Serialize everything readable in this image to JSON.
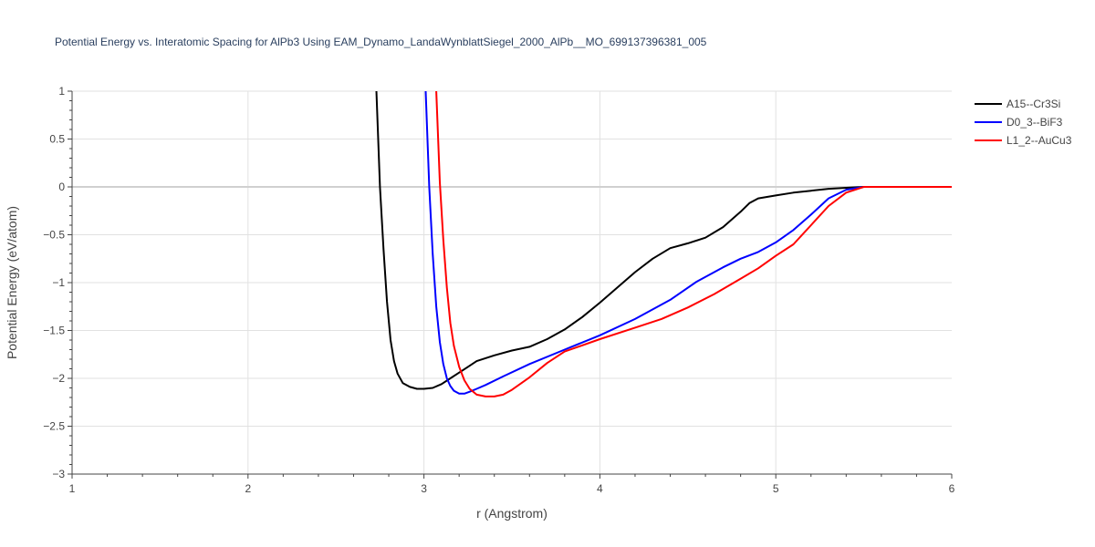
{
  "chart_data": {
    "type": "line",
    "title": "Potential Energy vs. Interatomic Spacing for AlPb3 Using EAM_Dynamo_LandaWynblattSiegel_2000_AlPb__MO_699137396381_005",
    "xlabel": "r (Angstrom)",
    "ylabel": "Potential Energy (eV/atom)",
    "xlim": [
      1,
      6
    ],
    "ylim": [
      -3,
      1
    ],
    "xticks": [
      1,
      2,
      3,
      4,
      5,
      6
    ],
    "xtick_labels": [
      "1",
      "2",
      "3",
      "4",
      "5",
      "6"
    ],
    "yticks": [
      1,
      0.5,
      0,
      -0.5,
      -1,
      -1.5,
      -2,
      -2.5,
      -3
    ],
    "ytick_labels": [
      "1",
      "0.5",
      "0",
      "−0.5",
      "−1",
      "−1.5",
      "−2",
      "−2.5",
      "−3"
    ],
    "grid": true,
    "legend_position": "top-right",
    "series": [
      {
        "name": "A15--Cr3Si",
        "color": "#000000",
        "x": [
          2.73,
          2.75,
          2.77,
          2.79,
          2.81,
          2.83,
          2.85,
          2.88,
          2.92,
          2.96,
          3.0,
          3.05,
          3.1,
          3.15,
          3.2,
          3.25,
          3.3,
          3.4,
          3.5,
          3.6,
          3.7,
          3.8,
          3.9,
          4.0,
          4.1,
          4.2,
          4.3,
          4.4,
          4.5,
          4.6,
          4.7,
          4.8,
          4.85,
          4.9,
          5.0,
          5.1,
          5.2,
          5.3,
          5.4,
          5.5,
          5.6,
          5.8,
          6.0
        ],
        "y": [
          1.0,
          0.0,
          -0.65,
          -1.2,
          -1.6,
          -1.82,
          -1.95,
          -2.05,
          -2.09,
          -2.11,
          -2.11,
          -2.1,
          -2.06,
          -2.0,
          -1.94,
          -1.88,
          -1.82,
          -1.76,
          -1.71,
          -1.67,
          -1.59,
          -1.49,
          -1.36,
          -1.21,
          -1.05,
          -0.89,
          -0.75,
          -0.64,
          -0.59,
          -0.53,
          -0.42,
          -0.26,
          -0.17,
          -0.12,
          -0.09,
          -0.06,
          -0.04,
          -0.02,
          -0.01,
          0.0,
          0.0,
          0.0,
          0.0
        ]
      },
      {
        "name": "D0_3--BiF3",
        "color": "#0000ff",
        "x": [
          3.01,
          3.03,
          3.05,
          3.07,
          3.09,
          3.11,
          3.13,
          3.15,
          3.17,
          3.2,
          3.23,
          3.26,
          3.3,
          3.35,
          3.45,
          3.6,
          3.8,
          4.0,
          4.2,
          4.4,
          4.55,
          4.7,
          4.8,
          4.9,
          5.0,
          5.1,
          5.2,
          5.3,
          5.4,
          5.5,
          5.6,
          5.8,
          6.0
        ],
        "y": [
          1.0,
          0.0,
          -0.7,
          -1.25,
          -1.62,
          -1.85,
          -2.0,
          -2.08,
          -2.13,
          -2.16,
          -2.16,
          -2.14,
          -2.11,
          -2.07,
          -1.98,
          -1.85,
          -1.7,
          -1.55,
          -1.38,
          -1.18,
          -0.99,
          -0.84,
          -0.75,
          -0.68,
          -0.58,
          -0.45,
          -0.29,
          -0.12,
          -0.03,
          0.0,
          0.0,
          0.0,
          0.0
        ]
      },
      {
        "name": "L1_2--AuCu3",
        "color": "#ff0000",
        "x": [
          3.07,
          3.09,
          3.11,
          3.13,
          3.15,
          3.17,
          3.2,
          3.23,
          3.26,
          3.3,
          3.35,
          3.4,
          3.45,
          3.5,
          3.6,
          3.7,
          3.8,
          4.0,
          4.2,
          4.35,
          4.5,
          4.65,
          4.8,
          4.9,
          5.0,
          5.1,
          5.2,
          5.3,
          5.4,
          5.5,
          5.6,
          5.8,
          6.0
        ],
        "y": [
          1.0,
          0.05,
          -0.55,
          -1.05,
          -1.42,
          -1.66,
          -1.88,
          -2.02,
          -2.11,
          -2.17,
          -2.19,
          -2.19,
          -2.17,
          -2.12,
          -1.99,
          -1.84,
          -1.72,
          -1.59,
          -1.47,
          -1.38,
          -1.26,
          -1.12,
          -0.96,
          -0.85,
          -0.72,
          -0.6,
          -0.4,
          -0.2,
          -0.06,
          0.0,
          0.0,
          0.0,
          0.0
        ]
      }
    ]
  }
}
